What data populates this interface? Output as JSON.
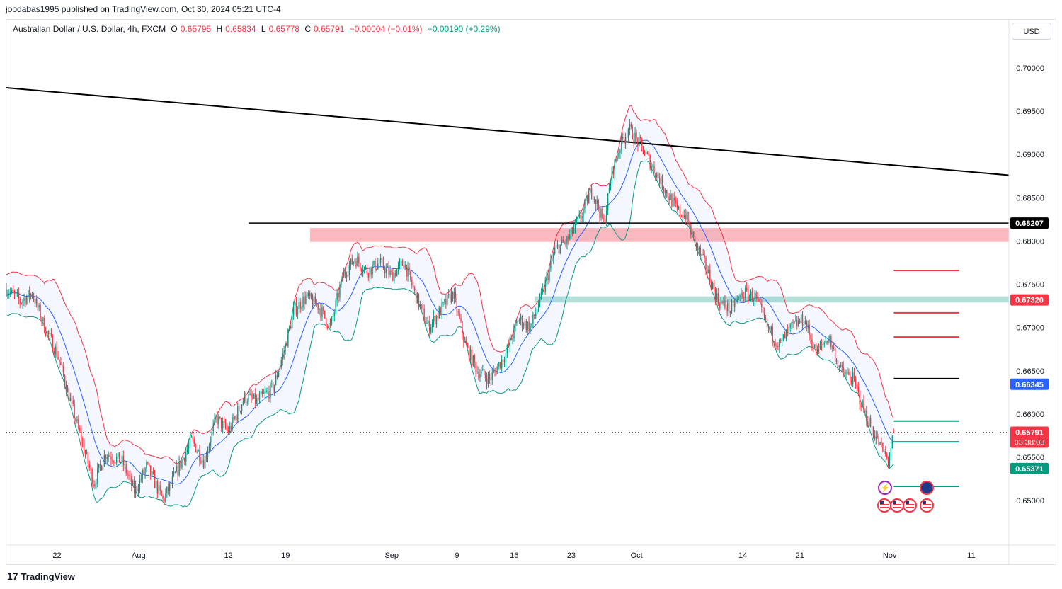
{
  "publisher_line": "joodabas1995 published on TradingView.com, Oct 30, 2024 05:21 UTC-4",
  "legend": {
    "symbol": "Australian Dollar / U.S. Dollar, 4h, FXCM",
    "open_label": "O",
    "open": "0.65795",
    "high_label": "H",
    "high": "0.65834",
    "low_label": "L",
    "low": "0.65778",
    "close_label": "C",
    "close": "0.65791",
    "change": "−0.00004 (−0.01%)",
    "change2": "+0.00190 (+0.29%)"
  },
  "currency_button": "USD",
  "footer": {
    "logo_glyph": "17",
    "brand": "TradingView"
  },
  "chart_data": {
    "type": "candlestick",
    "title": "Australian Dollar / U.S. Dollar, 4h, FXCM",
    "timeframe": "4h",
    "y_axis": {
      "ticks": [
        "0.70000",
        "0.69500",
        "0.69000",
        "0.68500",
        "0.68000",
        "0.67500",
        "0.67000",
        "0.66500",
        "0.66000",
        "0.65500",
        "0.65000"
      ],
      "ylim": [
        0.6483,
        0.7031
      ]
    },
    "x_axis": {
      "ticks": [
        {
          "label": "22",
          "day": 22
        },
        {
          "label": "Aug",
          "day": 32
        },
        {
          "label": "12",
          "day": 43
        },
        {
          "label": "19",
          "day": 50
        },
        {
          "label": "Sep",
          "day": 63
        },
        {
          "label": "9",
          "day": 71
        },
        {
          "label": "16",
          "day": 78
        },
        {
          "label": "23",
          "day": 85
        },
        {
          "label": "Oct",
          "day": 93
        },
        {
          "label": "14",
          "day": 106
        },
        {
          "label": "21",
          "day": 113
        },
        {
          "label": "Nov",
          "day": 124
        },
        {
          "label": "11",
          "day": 134
        }
      ],
      "xlim": [
        15.8,
        138.6
      ],
      "unit": "days from Jul 1, 2024"
    },
    "price_path": [
      [
        15.8,
        0.6745
      ],
      [
        17.5,
        0.673
      ],
      [
        19,
        0.674
      ],
      [
        20.5,
        0.67
      ],
      [
        22,
        0.667
      ],
      [
        23.5,
        0.662
      ],
      [
        25,
        0.657
      ],
      [
        26.5,
        0.652
      ],
      [
        28,
        0.6555
      ],
      [
        30,
        0.6545
      ],
      [
        31.5,
        0.651
      ],
      [
        33,
        0.654
      ],
      [
        35,
        0.65
      ],
      [
        37,
        0.654
      ],
      [
        38.5,
        0.657
      ],
      [
        40,
        0.6545
      ],
      [
        41.5,
        0.6595
      ],
      [
        43,
        0.658
      ],
      [
        45,
        0.662
      ],
      [
        46.5,
        0.6615
      ],
      [
        48.5,
        0.663
      ],
      [
        50,
        0.668
      ],
      [
        51,
        0.672
      ],
      [
        52.5,
        0.6735
      ],
      [
        54,
        0.6725
      ],
      [
        55.5,
        0.67
      ],
      [
        57,
        0.676
      ],
      [
        58.5,
        0.678
      ],
      [
        60,
        0.6765
      ],
      [
        61.5,
        0.6775
      ],
      [
        63,
        0.676
      ],
      [
        64.5,
        0.6775
      ],
      [
        66,
        0.6735
      ],
      [
        67.5,
        0.67
      ],
      [
        69,
        0.672
      ],
      [
        70.5,
        0.674
      ],
      [
        72,
        0.668
      ],
      [
        73.5,
        0.665
      ],
      [
        75,
        0.664
      ],
      [
        77,
        0.667
      ],
      [
        78.5,
        0.671
      ],
      [
        80,
        0.67
      ],
      [
        81.5,
        0.674
      ],
      [
        83,
        0.679
      ],
      [
        84.5,
        0.68
      ],
      [
        86,
        0.6825
      ],
      [
        87.5,
        0.686
      ],
      [
        89,
        0.682
      ],
      [
        90,
        0.688
      ],
      [
        91,
        0.691
      ],
      [
        92,
        0.693
      ],
      [
        93.5,
        0.691
      ],
      [
        95,
        0.6885
      ],
      [
        96.5,
        0.686
      ],
      [
        98,
        0.6835
      ],
      [
        99,
        0.683
      ],
      [
        100,
        0.68
      ],
      [
        101.5,
        0.677
      ],
      [
        103,
        0.673
      ],
      [
        104.5,
        0.672
      ],
      [
        106,
        0.674
      ],
      [
        107.5,
        0.6735
      ],
      [
        109,
        0.67
      ],
      [
        110.5,
        0.668
      ],
      [
        112,
        0.67
      ],
      [
        113.5,
        0.671
      ],
      [
        115,
        0.667
      ],
      [
        116.5,
        0.669
      ],
      [
        118,
        0.665
      ],
      [
        119.5,
        0.664
      ],
      [
        121,
        0.66
      ],
      [
        122,
        0.658
      ],
      [
        123,
        0.656
      ],
      [
        123.8,
        0.6546
      ],
      [
        124.6,
        0.6579
      ]
    ],
    "last_price": {
      "value": "0.65791",
      "countdown": "03:38:03",
      "color": "#f23645"
    },
    "indicators": [
      {
        "type": "bollinger_upper",
        "color": "#f23645"
      },
      {
        "type": "bollinger_lower",
        "color": "#089981"
      },
      {
        "type": "bollinger_basis",
        "color": "#2962ff"
      },
      {
        "type": "band_fill",
        "color": "#2962ff"
      }
    ],
    "drawings": [
      {
        "type": "trendline",
        "color": "#000000",
        "from": [
          15.8,
          0.6977
        ],
        "to": [
          138.6,
          0.6876
        ]
      },
      {
        "type": "horizontal_line",
        "color": "#000000",
        "price": 0.68207,
        "label": "0.68207",
        "x_start": 45.5
      },
      {
        "type": "zone",
        "color": "#f23645",
        "from_price": 0.6799,
        "to_price": 0.6815,
        "x_start": 53
      },
      {
        "type": "zone",
        "color": "#089981",
        "from_price": 0.6729,
        "to_price": 0.6736,
        "x_start": 80.5,
        "label": "0.67320"
      },
      {
        "type": "segment",
        "color": "#f23645",
        "price": 0.6766,
        "x": [
          124.5,
          132.5
        ]
      },
      {
        "type": "segment",
        "color": "#f23645",
        "price": 0.6717,
        "x": [
          124.5,
          132.5
        ]
      },
      {
        "type": "segment",
        "color": "#f23645",
        "price": 0.6689,
        "x": [
          124.5,
          132.5
        ]
      },
      {
        "type": "segment",
        "color": "#000000",
        "price": 0.6641,
        "x": [
          124.5,
          132.5
        ]
      },
      {
        "type": "segment",
        "color": "#089981",
        "price": 0.6592,
        "x": [
          124.5,
          132.5
        ]
      },
      {
        "type": "segment",
        "color": "#089981",
        "price": 0.6568,
        "x": [
          124.5,
          132.5
        ]
      },
      {
        "type": "segment",
        "color": "#089981",
        "price": 0.65165,
        "x": [
          124.5,
          132.5
        ]
      }
    ],
    "price_labels": [
      {
        "value": "0.68207",
        "color": "#000000"
      },
      {
        "value": "0.67320",
        "color": "#f23645"
      },
      {
        "value": "0.66345",
        "color": "#2962ff"
      },
      {
        "value": "0.65791",
        "color": "#f23645"
      },
      {
        "value": "0.65371",
        "color": "#089981"
      }
    ],
    "grid": false,
    "event_icons": [
      "lightning-icon",
      "au-flag-icon",
      "us-flag-icon",
      "us-flag-icon",
      "us-flag-icon",
      "us-flag-icon"
    ]
  }
}
